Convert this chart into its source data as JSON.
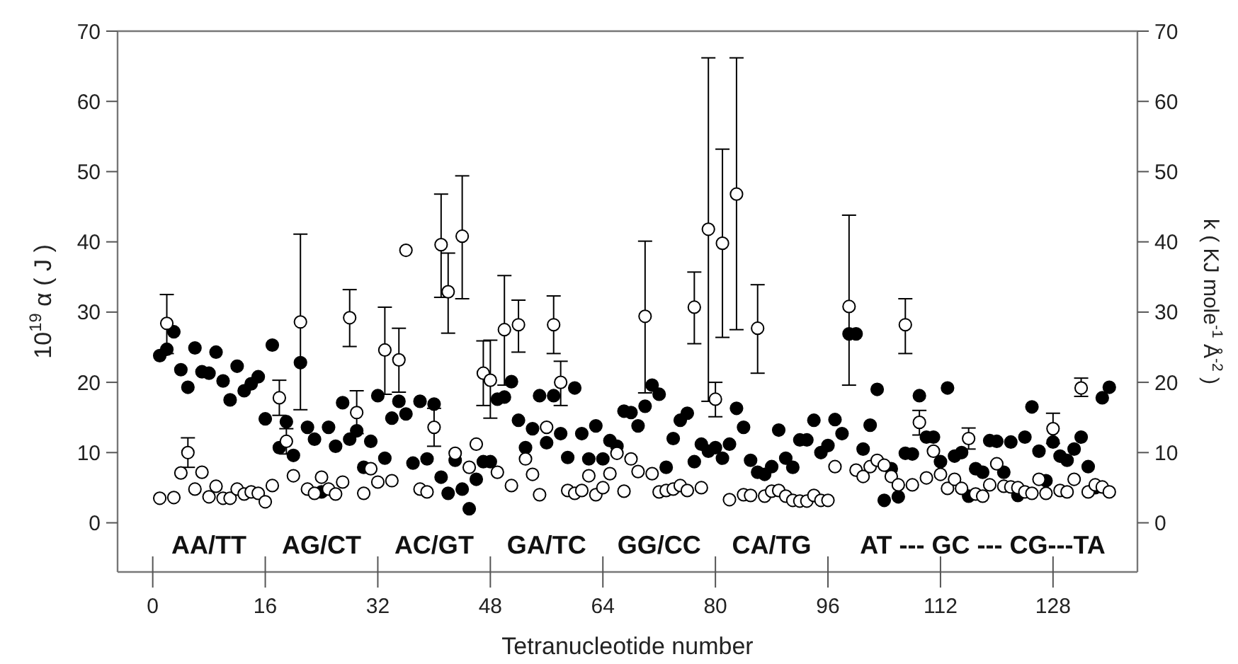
{
  "chart_data": {
    "type": "scatter",
    "ylabel": "10$^{19}$ α ( J )",
    "y2label": "k ( KJ mole$^{-1}$ Å$^{-2}$ )",
    "xlabel": "Tetranucleotide number",
    "xlim": [
      -5,
      140
    ],
    "xticks": [
      0,
      16,
      32,
      48,
      64,
      80,
      96,
      112,
      128
    ],
    "ylim": [
      -7,
      70
    ],
    "yticks": [
      0,
      10,
      20,
      30,
      40,
      50,
      60,
      70
    ],
    "y2lim": [
      -7,
      70
    ],
    "y2ticks": [
      0,
      10,
      20,
      30,
      40,
      50,
      60,
      70
    ],
    "grid": false,
    "marker": "circle",
    "annotations": [
      "AA/TT",
      "AG/CT",
      "AC/GT",
      "GA/TC",
      "GG/CC",
      "CA/TG",
      "AT --- GC --- CG---TA"
    ],
    "series": [
      {
        "color": "#000000",
        "x": [
          1,
          2,
          3,
          4,
          5,
          6,
          7,
          8,
          9,
          10,
          11,
          12,
          13,
          14,
          15,
          16,
          17,
          18,
          19,
          20,
          21,
          22,
          23,
          24,
          25,
          26,
          27,
          28,
          29,
          30,
          31,
          32,
          33,
          34,
          35,
          36,
          37,
          38,
          39,
          40,
          41,
          42,
          43,
          44,
          45,
          46,
          47,
          48,
          49,
          50,
          51,
          52,
          53,
          54,
          55,
          56,
          57,
          58,
          59,
          60,
          61,
          62,
          63,
          64,
          65,
          66,
          67,
          68,
          69,
          70,
          71,
          72,
          73,
          74,
          75,
          76,
          77,
          78,
          79,
          80,
          81,
          82,
          83,
          84,
          85,
          86,
          87,
          88,
          89,
          90,
          91,
          92,
          93,
          94,
          95,
          96,
          97,
          98,
          99,
          100,
          101,
          102,
          103,
          104,
          105,
          106,
          107,
          108,
          109,
          110,
          111,
          112,
          113,
          114,
          115,
          116,
          117,
          118,
          119,
          120,
          121,
          122,
          123,
          124,
          125,
          126,
          127,
          128,
          129,
          130,
          131,
          132,
          133,
          134,
          135,
          136
        ],
        "values": [
          23.8,
          24.7,
          27.2,
          21.8,
          19.3,
          24.9,
          21.5,
          21.3,
          24.3,
          20.2,
          17.5,
          22.3,
          18.8,
          19.8,
          20.8,
          14.8,
          25.3,
          10.7,
          14.4,
          9.6,
          22.8,
          13.6,
          11.9,
          4.4,
          13.6,
          10.9,
          17.1,
          11.9,
          13.1,
          7.9,
          11.6,
          18.1,
          9.2,
          14.9,
          17.3,
          15.5,
          8.5,
          17.3,
          9.1,
          16.9,
          6.5,
          4.2,
          8.9,
          4.8,
          2.0,
          6.2,
          8.7,
          8.7,
          17.6,
          17.9,
          20.1,
          14.6,
          10.7,
          13.4,
          18.1,
          11.4,
          18.1,
          12.7,
          9.3,
          19.2,
          12.7,
          9.1,
          13.8,
          9.1,
          11.7,
          10.9,
          15.9,
          15.7,
          13.8,
          16.6,
          19.6,
          18.3,
          7.9,
          12.0,
          14.6,
          15.6,
          8.7,
          11.2,
          10.2,
          10.7,
          9.2,
          11.2,
          16.3,
          13.6,
          8.9,
          7.2,
          6.9,
          8.0,
          13.2,
          9.2,
          7.9,
          11.8,
          11.8,
          14.6,
          10.0,
          11.0,
          14.7,
          12.7,
          26.9,
          26.9,
          10.5,
          13.9,
          19.0,
          3.2,
          7.7,
          3.7,
          9.9,
          9.8,
          18.1,
          12.2,
          12.2,
          8.7,
          19.2,
          9.5,
          10.0,
          3.8,
          7.7,
          7.2,
          11.7,
          11.6,
          7.2,
          11.5,
          3.9,
          12.2,
          16.5,
          10.2,
          6.0,
          11.5,
          9.5,
          8.9,
          10.5,
          12.2,
          8.0,
          5.0,
          17.8,
          19.3
        ]
      },
      {
        "color": "#ffffff",
        "x": [
          1,
          2,
          3,
          4,
          5,
          6,
          7,
          8,
          9,
          10,
          11,
          12,
          13,
          14,
          15,
          16,
          17,
          18,
          19,
          20,
          21,
          22,
          23,
          24,
          25,
          26,
          27,
          28,
          29,
          30,
          31,
          32,
          33,
          34,
          35,
          36,
          38,
          39,
          40,
          41,
          42,
          43,
          44,
          45,
          46,
          47,
          48,
          49,
          50,
          51,
          52,
          53,
          54,
          55,
          56,
          57,
          58,
          59,
          60,
          61,
          62,
          63,
          64,
          65,
          66,
          67,
          68,
          69,
          70,
          71,
          72,
          73,
          74,
          75,
          76,
          77,
          78,
          79,
          80,
          81,
          82,
          83,
          84,
          85,
          86,
          87,
          88,
          89,
          90,
          91,
          92,
          93,
          94,
          95,
          96,
          97,
          99,
          100,
          101,
          102,
          103,
          104,
          105,
          106,
          107,
          108,
          109,
          110,
          111,
          112,
          113,
          114,
          115,
          116,
          117,
          118,
          119,
          120,
          121,
          122,
          123,
          124,
          125,
          126,
          127,
          128,
          129,
          130,
          131,
          132,
          133,
          134,
          135,
          136
        ],
        "values": [
          3.5,
          28.4,
          3.6,
          7.1,
          10.0,
          4.8,
          7.2,
          3.7,
          5.2,
          3.5,
          3.5,
          4.8,
          4.1,
          4.4,
          4.2,
          3.0,
          5.3,
          17.8,
          11.6,
          6.7,
          28.6,
          4.8,
          4.2,
          6.5,
          4.8,
          4.1,
          5.8,
          29.2,
          15.7,
          4.2,
          7.7,
          5.8,
          24.6,
          6.0,
          23.2,
          38.8,
          4.8,
          4.4,
          13.6,
          39.6,
          32.9,
          9.9,
          40.8,
          7.9,
          11.2,
          21.3,
          20.3,
          7.2,
          27.5,
          5.3,
          28.2,
          9.1,
          6.9,
          4.0,
          13.6,
          28.2,
          20.0,
          4.6,
          4.2,
          4.6,
          6.7,
          4.0,
          5.0,
          7.0,
          9.9,
          4.5,
          9.1,
          7.3,
          29.4,
          7.0,
          4.4,
          4.6,
          4.8,
          5.3,
          4.6,
          30.7,
          5.0,
          41.8,
          17.6,
          39.8,
          3.3,
          46.8,
          4.0,
          3.9,
          27.7,
          3.8,
          4.5,
          4.6,
          3.8,
          3.2,
          3.1,
          3.1,
          3.9,
          3.2,
          3.2,
          8.0,
          30.8,
          7.5,
          6.6,
          8.0,
          8.9,
          8.2,
          6.6,
          5.4,
          28.2,
          5.4,
          14.3,
          6.4,
          10.2,
          6.9,
          4.9,
          6.2,
          4.9,
          12.0,
          4.1,
          3.8,
          5.4,
          8.4,
          5.2,
          5.1,
          5.0,
          4.4,
          4.2,
          6.2,
          4.2,
          13.4,
          4.6,
          4.4,
          6.2,
          19.2,
          4.4,
          5.4,
          5.1,
          4.4
        ],
        "errors": [
          null,
          [
            24.1,
            32.5
          ],
          null,
          null,
          [
            7.9,
            12.1
          ],
          null,
          null,
          null,
          null,
          null,
          null,
          null,
          null,
          null,
          null,
          null,
          null,
          [
            15.3,
            20.3
          ],
          [
            9.8,
            13.4
          ],
          null,
          [
            16.1,
            41.1
          ],
          null,
          null,
          null,
          null,
          null,
          null,
          [
            25.1,
            33.2
          ],
          [
            12.7,
            18.8
          ],
          null,
          null,
          null,
          [
            18.3,
            30.7
          ],
          null,
          [
            18.6,
            27.7
          ],
          null,
          null,
          null,
          [
            10.9,
            16.3
          ],
          [
            32.1,
            46.8
          ],
          [
            27.0,
            38.4
          ],
          null,
          [
            31.9,
            49.4
          ],
          null,
          null,
          [
            16.7,
            25.9
          ],
          [
            14.9,
            26.0
          ],
          null,
          [
            19.6,
            35.2
          ],
          null,
          [
            24.3,
            31.7
          ],
          null,
          null,
          null,
          null,
          [
            24.1,
            32.3
          ],
          [
            16.7,
            23.0
          ],
          null,
          null,
          null,
          null,
          null,
          null,
          null,
          null,
          null,
          null,
          null,
          [
            18.5,
            40.1
          ],
          null,
          null,
          null,
          null,
          null,
          null,
          [
            25.5,
            35.7
          ],
          null,
          [
            17.3,
            66.2
          ],
          [
            15.1,
            20.0
          ],
          [
            26.4,
            53.2
          ],
          null,
          [
            27.5,
            66.2
          ],
          null,
          null,
          [
            21.3,
            33.9
          ],
          null,
          null,
          null,
          null,
          null,
          null,
          null,
          null,
          null,
          null,
          null,
          [
            19.6,
            43.8
          ],
          null,
          null,
          null,
          null,
          null,
          null,
          null,
          [
            24.1,
            31.9
          ],
          null,
          [
            12.5,
            16.0
          ],
          null,
          null,
          null,
          null,
          null,
          null,
          [
            10.5,
            13.5
          ],
          null,
          null,
          null,
          null,
          null,
          null,
          null,
          null,
          null,
          null,
          null,
          [
            11.3,
            15.6
          ],
          null,
          null,
          null,
          [
            18.0,
            20.6
          ],
          null,
          null,
          null,
          null
        ]
      }
    ]
  }
}
